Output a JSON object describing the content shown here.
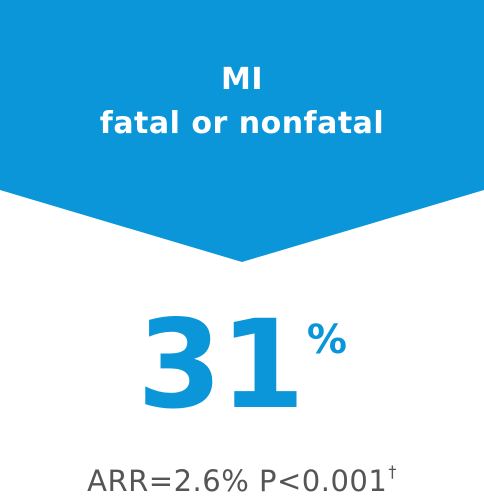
{
  "colors": {
    "accent": "#0a96d9",
    "background": "#ffffff",
    "text_muted": "#555555",
    "banner_text": "#ffffff"
  },
  "banner": {
    "line1": "MI",
    "line2": "fatal or nonfatal"
  },
  "stat": {
    "value": "31",
    "unit": "%"
  },
  "footnote": {
    "text": "ARR=2.6% P<0.001",
    "mark": "†"
  }
}
